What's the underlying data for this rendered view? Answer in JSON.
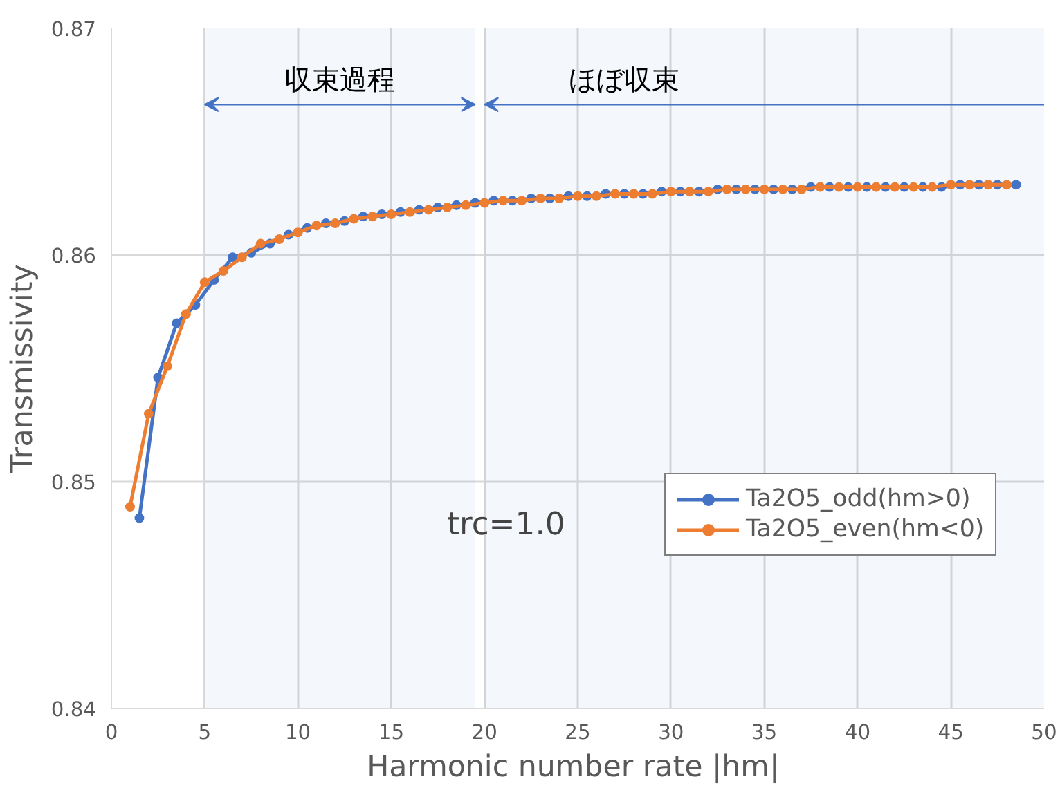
{
  "chart_data": {
    "type": "line",
    "xlabel": "Harmonic number rate  |hm|",
    "ylabel": "Transmissivity",
    "xlim": [
      0,
      50
    ],
    "xticks": [
      0,
      5,
      10,
      15,
      20,
      25,
      30,
      35,
      40,
      45,
      50
    ],
    "ylim": [
      0.84,
      0.87
    ],
    "yticks": [
      0.84,
      0.85,
      0.86,
      0.87
    ],
    "grid": true,
    "legend": "right",
    "marker": "circle",
    "line_style": "solid",
    "annotations": [
      "trc=1.0"
    ],
    "bands": [
      {
        "axis": "x",
        "from": 5,
        "to": 19.5,
        "label": "収束過程",
        "color": "#4472c4"
      },
      {
        "axis": "x",
        "from": 20,
        "to": 50,
        "label": "ほぼ収束",
        "color": "#4472c4"
      }
    ],
    "series": [
      {
        "name": "Ta2O5_odd(hm>0)",
        "color": "#4472c4",
        "x": [
          1.5,
          2.5,
          3.5,
          4.5,
          5.5,
          6.5,
          7.5,
          8.5,
          9.5,
          10.5,
          11.5,
          12.5,
          13.5,
          14.5,
          15.5,
          16.5,
          17.5,
          18.5,
          19.5,
          20.5,
          21.5,
          22.5,
          23.5,
          24.5,
          25.5,
          26.5,
          27.5,
          28.5,
          29.5,
          30.5,
          31.5,
          32.5,
          33.5,
          34.5,
          35.5,
          36.5,
          37.5,
          38.5,
          39.5,
          40.5,
          41.5,
          42.5,
          43.5,
          44.5,
          45.5,
          46.5,
          47.5,
          48.5
        ],
        "values": [
          0.8484,
          0.8546,
          0.857,
          0.8578,
          0.8589,
          0.8599,
          0.8601,
          0.8605,
          0.8609,
          0.8612,
          0.8614,
          0.8615,
          0.8617,
          0.8618,
          0.8619,
          0.862,
          0.8621,
          0.8622,
          0.8623,
          0.8624,
          0.8624,
          0.8625,
          0.8625,
          0.8626,
          0.8626,
          0.8627,
          0.8627,
          0.8627,
          0.8628,
          0.8628,
          0.8628,
          0.8629,
          0.8629,
          0.8629,
          0.8629,
          0.8629,
          0.863,
          0.863,
          0.863,
          0.863,
          0.863,
          0.863,
          0.863,
          0.863,
          0.8631,
          0.8631,
          0.8631,
          0.8631
        ]
      },
      {
        "name": "Ta2O5_even(hm<0)",
        "color": "#ed7d31",
        "x": [
          1,
          2,
          3,
          4,
          5,
          6,
          7,
          8,
          9,
          10,
          11,
          12,
          13,
          14,
          15,
          16,
          17,
          18,
          19,
          20,
          21,
          22,
          23,
          24,
          25,
          26,
          27,
          28,
          29,
          30,
          31,
          32,
          33,
          34,
          35,
          36,
          37,
          38,
          39,
          40,
          41,
          42,
          43,
          44,
          45,
          46,
          47,
          48
        ],
        "values": [
          0.8489,
          0.853,
          0.8551,
          0.8574,
          0.8588,
          0.8593,
          0.8599,
          0.8605,
          0.8607,
          0.861,
          0.8613,
          0.8614,
          0.8616,
          0.8617,
          0.8618,
          0.8619,
          0.862,
          0.8621,
          0.8622,
          0.8623,
          0.8624,
          0.8624,
          0.8625,
          0.8625,
          0.8626,
          0.8626,
          0.8627,
          0.8627,
          0.8627,
          0.8628,
          0.8628,
          0.8628,
          0.8629,
          0.8629,
          0.8629,
          0.8629,
          0.8629,
          0.863,
          0.863,
          0.863,
          0.863,
          0.863,
          0.863,
          0.863,
          0.8631,
          0.8631,
          0.8631,
          0.8631
        ]
      }
    ]
  }
}
